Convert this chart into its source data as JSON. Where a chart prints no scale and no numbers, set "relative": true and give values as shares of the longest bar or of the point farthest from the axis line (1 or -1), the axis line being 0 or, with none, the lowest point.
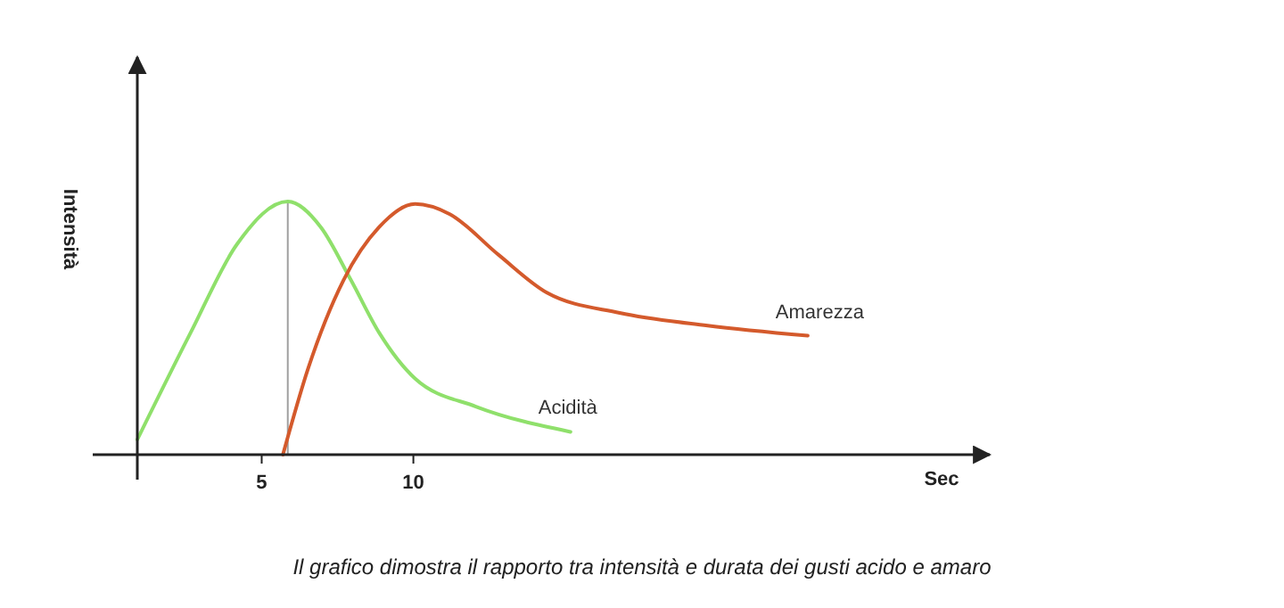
{
  "chart_data": {
    "type": "line",
    "relative": true,
    "ylabel": "Intensità",
    "xlabel": "Sec",
    "xlim": [
      0.9,
      29
    ],
    "xticks": [
      5,
      10
    ],
    "series": [
      {
        "name": "Acidità",
        "color": "#8fe06b",
        "x": [
          0.9,
          2.65,
          4.18,
          5.86,
          6.94,
          7.94,
          8.88,
          10.06,
          12.06,
          15.18
        ],
        "values": [
          0.06,
          0.48,
          0.83,
          1,
          0.9,
          0.69,
          0.48,
          0.3,
          0.19,
          0.09
        ]
      },
      {
        "name": "Amarezza",
        "color": "#d45a2c",
        "x": [
          5.7,
          6.53,
          7.7,
          8.88,
          10.06,
          11.2,
          12.8,
          14.4,
          16.8,
          19.7,
          23.0
        ],
        "values": [
          0,
          0.34,
          0.69,
          0.9,
          0.99,
          0.95,
          0.79,
          0.64,
          0.56,
          0.51,
          0.47
        ]
      }
    ],
    "ref_lines": [
      {
        "axis": "x",
        "value": 5.86,
        "color": "#a0a0a0"
      }
    ],
    "annotations": [
      "Il grafico dimostra il rapporto tra intensità e durata dei gusti acido e amaro"
    ]
  }
}
